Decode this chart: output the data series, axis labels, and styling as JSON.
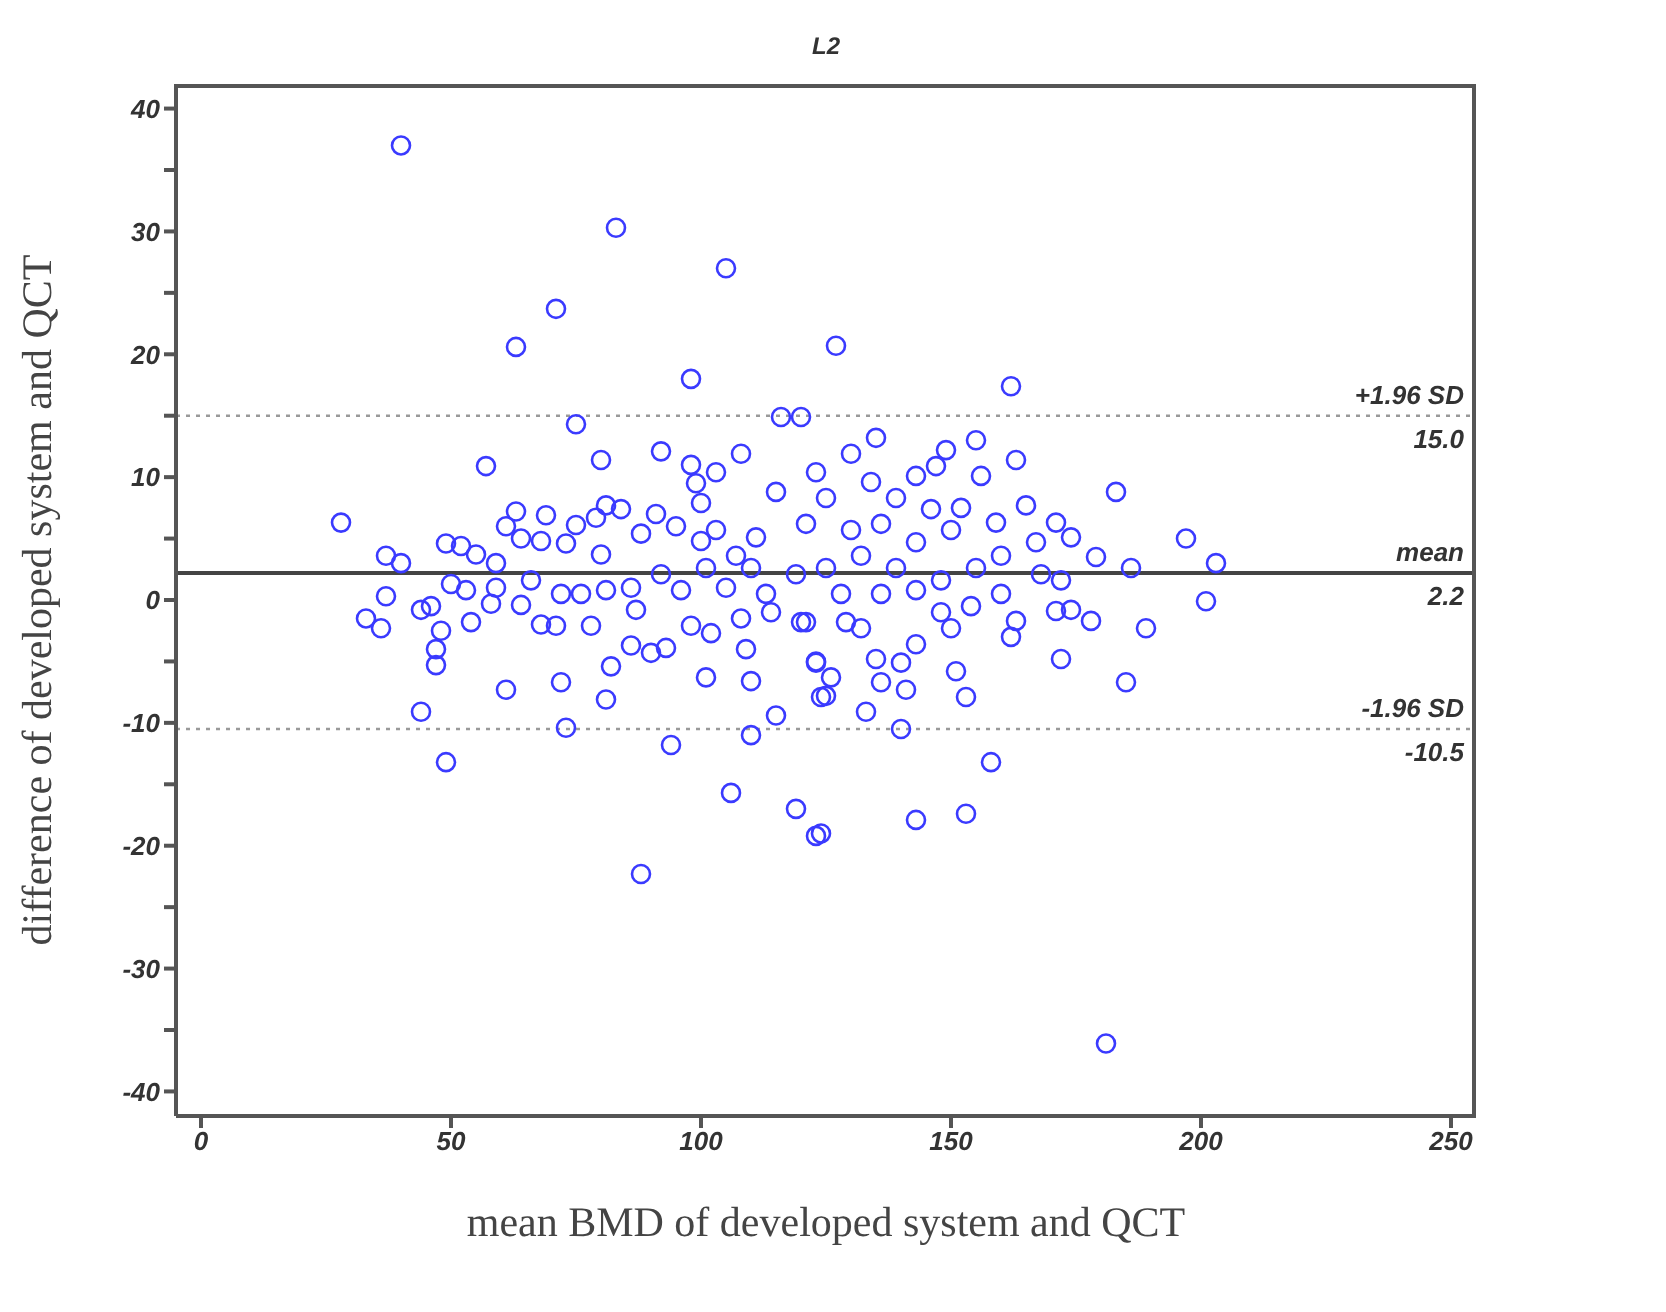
{
  "chart_data": {
    "type": "scatter",
    "title": "L2",
    "xlabel": "mean BMD of developed system and QCT",
    "ylabel": "difference of developed system and QCT",
    "marker": "circle",
    "xlim": [
      -5,
      255
    ],
    "xticks": [
      0,
      50,
      100,
      150,
      200,
      250
    ],
    "ylim": [
      -42,
      42
    ],
    "yticks": [
      -40,
      {
        "value": -35,
        "label": null
      },
      -30,
      {
        "value": -25,
        "label": null
      },
      -20,
      {
        "value": -15,
        "label": null
      },
      -10,
      {
        "value": -5,
        "label": null
      },
      0,
      {
        "value": 5,
        "label": null
      },
      10,
      {
        "value": 15,
        "label": null
      },
      20,
      {
        "value": 25,
        "label": null
      },
      30,
      {
        "value": 35,
        "label": null
      },
      40
    ],
    "ref_lines": [
      {
        "axis": "y",
        "value": 15.0,
        "label": "+1.96 SD",
        "color": "#999999",
        "line_style": "dotted"
      },
      {
        "axis": "y",
        "value": 2.2,
        "label": "mean",
        "color": "#444444",
        "line_style": "solid"
      },
      {
        "axis": "y",
        "value": -10.5,
        "label": "-1.96 SD",
        "color": "#999999",
        "line_style": "dotted"
      }
    ],
    "annotations": [
      {
        "text": "15.0",
        "y": 15.0
      },
      {
        "text": "2.2",
        "y": 2.2
      },
      {
        "text": "-10.5",
        "y": -10.5
      }
    ],
    "series": [
      {
        "color": "#3a3aff",
        "x": [
          40,
          83,
          105,
          71,
          63,
          98,
          75,
          116,
          120,
          57,
          80,
          92,
          108,
          98,
          103,
          99,
          100,
          123,
          115,
          28,
          37,
          40,
          49,
          52,
          55,
          59,
          61,
          63,
          64,
          69,
          68,
          73,
          75,
          79,
          81,
          84,
          80,
          88,
          91,
          95,
          100,
          103,
          107,
          111,
          50,
          53,
          59,
          66,
          72,
          76,
          81,
          86,
          92,
          96,
          101,
          105,
          110,
          113,
          119,
          37,
          33,
          36,
          44,
          46,
          54,
          58,
          64,
          68,
          71,
          78,
          87,
          98,
          102,
          108,
          114,
          120,
          48,
          47,
          47,
          44,
          49,
          61,
          72,
          73,
          82,
          81,
          86,
          90,
          93,
          94,
          88,
          101,
          109,
          110,
          110,
          106,
          115,
          119,
          123,
          123,
          124,
          201,
          189,
          178,
          172,
          185,
          163,
          162,
          171,
          174,
          151,
          153,
          158,
          153,
          143,
          140,
          133,
          141,
          136,
          135,
          143,
          140,
          125,
          126,
          123,
          124,
          181,
          150,
          148,
          154,
          160,
          132,
          129,
          121,
          127,
          162,
          135,
          155,
          163,
          156,
          149,
          147,
          143,
          130,
          183,
          197,
          203,
          186,
          179,
          174,
          171,
          167,
          165,
          159,
          152,
          146,
          139,
          134,
          125,
          136,
          130,
          121,
          143,
          150,
          160,
          168,
          172,
          125,
          132,
          139,
          148,
          155,
          128,
          136,
          143
        ],
        "values": [
          37.0,
          30.3,
          27.0,
          23.7,
          20.6,
          18.0,
          14.3,
          14.9,
          14.9,
          10.9,
          11.4,
          12.1,
          11.9,
          11.0,
          10.4,
          9.5,
          7.9,
          10.4,
          8.8,
          6.3,
          3.6,
          3.0,
          4.6,
          4.4,
          3.7,
          3.0,
          6.0,
          7.2,
          5.0,
          6.9,
          4.8,
          4.6,
          6.1,
          6.7,
          7.7,
          7.4,
          3.7,
          5.4,
          7.0,
          6.0,
          4.8,
          5.7,
          3.6,
          5.1,
          1.3,
          0.8,
          1.0,
          1.6,
          0.5,
          0.5,
          0.8,
          1.0,
          2.1,
          0.8,
          2.6,
          1.0,
          2.6,
          0.5,
          2.1,
          0.3,
          -1.5,
          -2.3,
          -0.8,
          -0.5,
          -1.8,
          -0.3,
          -0.4,
          -2.0,
          -2.1,
          -2.1,
          -0.8,
          -2.1,
          -2.7,
          -1.5,
          -1.0,
          -1.8,
          -2.5,
          -4.0,
          -5.3,
          -9.1,
          -13.2,
          -7.3,
          -6.7,
          -10.4,
          -5.4,
          -8.1,
          -3.7,
          -4.3,
          -3.9,
          -11.8,
          -22.3,
          -6.3,
          -4.0,
          -6.6,
          -11.0,
          -15.7,
          -9.4,
          -17.0,
          -19.2,
          -5.0,
          -7.9,
          -0.1,
          -2.3,
          -1.7,
          -4.8,
          -6.7,
          -1.7,
          -3.0,
          -0.9,
          -0.8,
          -5.8,
          -7.9,
          -13.2,
          -17.4,
          -17.9,
          -10.5,
          -9.1,
          -7.3,
          -6.7,
          -4.8,
          -3.6,
          -5.1,
          -7.8,
          -6.3,
          -5.1,
          -19.0,
          -36.1,
          -2.3,
          -1.0,
          -0.5,
          0.5,
          -2.3,
          -1.8,
          -1.8,
          20.7,
          17.4,
          13.2,
          13.0,
          11.4,
          10.1,
          12.2,
          10.9,
          10.1,
          11.9,
          8.8,
          5.0,
          3.0,
          2.6,
          3.5,
          5.1,
          6.3,
          4.7,
          7.7,
          6.3,
          7.5,
          7.4,
          8.3,
          9.6,
          8.3,
          6.2,
          5.7,
          6.2,
          4.7,
          5.7,
          3.6,
          2.1,
          1.6,
          2.6,
          3.6,
          2.6,
          1.6,
          2.6,
          0.5,
          0.5,
          0.8
        ]
      }
    ]
  }
}
